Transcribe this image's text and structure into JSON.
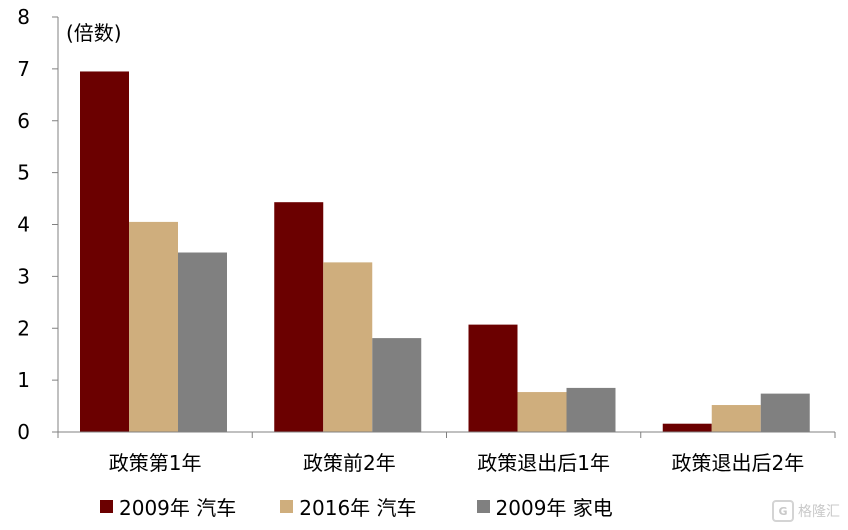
{
  "chart_data": {
    "type": "bar",
    "unit_label": "(倍数)",
    "categories": [
      "政策第1年",
      "政策前2年",
      "政策退出后1年",
      "政策退出后2年"
    ],
    "ylim": [
      0,
      8
    ],
    "yticks": [
      0,
      1,
      2,
      3,
      4,
      5,
      6,
      7,
      8
    ],
    "series": [
      {
        "name": "2009年 汽车",
        "color": "#6b0000",
        "values": [
          6.95,
          4.43,
          2.07,
          0.16
        ]
      },
      {
        "name": "2016年 汽车",
        "color": "#cfae7d",
        "values": [
          4.05,
          3.27,
          0.77,
          0.52
        ]
      },
      {
        "name": "2009年 家电",
        "color": "#808080",
        "values": [
          3.46,
          1.81,
          0.85,
          0.74
        ]
      }
    ],
    "grid": false,
    "legend_position": "bottom"
  },
  "watermark": {
    "text": "格隆汇",
    "icon": "gelonghui-logo-icon"
  }
}
